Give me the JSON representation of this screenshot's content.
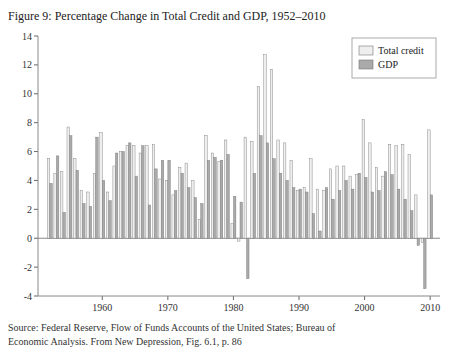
{
  "chart_data": {
    "type": "bar",
    "title": "Figure 9: Percentage Change in Total Credit and GDP, 1952–2010",
    "annotations": [
      "Source: Federal Reserve, Flow of Funds Accounts of the United States; Bureau of",
      "Economic Analysis. From New Depression, Fig. 6.1, p. 86"
    ],
    "x": [
      1952,
      1953,
      1954,
      1955,
      1956,
      1957,
      1958,
      1959,
      1960,
      1961,
      1962,
      1963,
      1964,
      1965,
      1966,
      1967,
      1968,
      1969,
      1970,
      1971,
      1972,
      1973,
      1974,
      1975,
      1976,
      1977,
      1978,
      1979,
      1980,
      1981,
      1982,
      1983,
      1984,
      1985,
      1986,
      1987,
      1988,
      1989,
      1990,
      1991,
      1992,
      1993,
      1994,
      1995,
      1996,
      1997,
      1998,
      1999,
      2000,
      2001,
      2002,
      2003,
      2004,
      2005,
      2006,
      2007,
      2008,
      2009,
      2010
    ],
    "series": [
      {
        "name": "Total credit",
        "color": "#eeeeee",
        "values": [
          5.5,
          4.5,
          4.6,
          7.7,
          5.5,
          3.3,
          3.2,
          4.5,
          7.3,
          3.2,
          5.0,
          6.0,
          6.4,
          6.4,
          5.9,
          6.4,
          6.5,
          4.1,
          4.0,
          3.0,
          4.9,
          5.2,
          4.0,
          1.3,
          7.1,
          5.9,
          5.3,
          6.8,
          1.0,
          -0.2,
          7.0,
          6.7,
          10.5,
          12.7,
          11.7,
          6.8,
          6.6,
          5.4,
          3.3,
          3.5,
          5.5,
          3.4,
          3.3,
          4.8,
          5.0,
          5.0,
          4.3,
          4.4,
          8.2,
          6.6,
          4.9,
          4.3,
          6.5,
          6.4,
          6.5,
          5.8,
          3.0,
          -0.3,
          7.5
        ]
      },
      {
        "name": "GDP",
        "color": "#aaaaaa",
        "values": [
          3.8,
          5.7,
          1.8,
          7.1,
          4.7,
          2.4,
          2.2,
          7.0,
          4.0,
          2.6,
          5.9,
          6.0,
          6.6,
          4.3,
          6.4,
          2.3,
          4.8,
          5.4,
          5.4,
          3.3,
          4.5,
          3.5,
          2.8,
          2.4,
          5.4,
          5.6,
          5.4,
          5.8,
          2.9,
          2.5,
          -2.8,
          4.5,
          7.1,
          6.6,
          5.5,
          4.5,
          4.0,
          3.5,
          3.4,
          3.2,
          1.7,
          0.5,
          3.5,
          2.7,
          3.3,
          4.0,
          3.4,
          4.5,
          4.2,
          3.2,
          3.3,
          4.6,
          4.4,
          3.4,
          2.7,
          1.9,
          -0.5,
          -3.5,
          3.0
        ]
      }
    ],
    "xlim": [
      1950.2,
      2011.5
    ],
    "xticks": [
      1960,
      1970,
      1980,
      1990,
      2000,
      2010
    ],
    "ylim": [
      -4,
      14
    ],
    "yticks": [
      -4,
      -2,
      0,
      2,
      4,
      6,
      8,
      10,
      12,
      14
    ],
    "grid": false,
    "legend": "upper right"
  }
}
